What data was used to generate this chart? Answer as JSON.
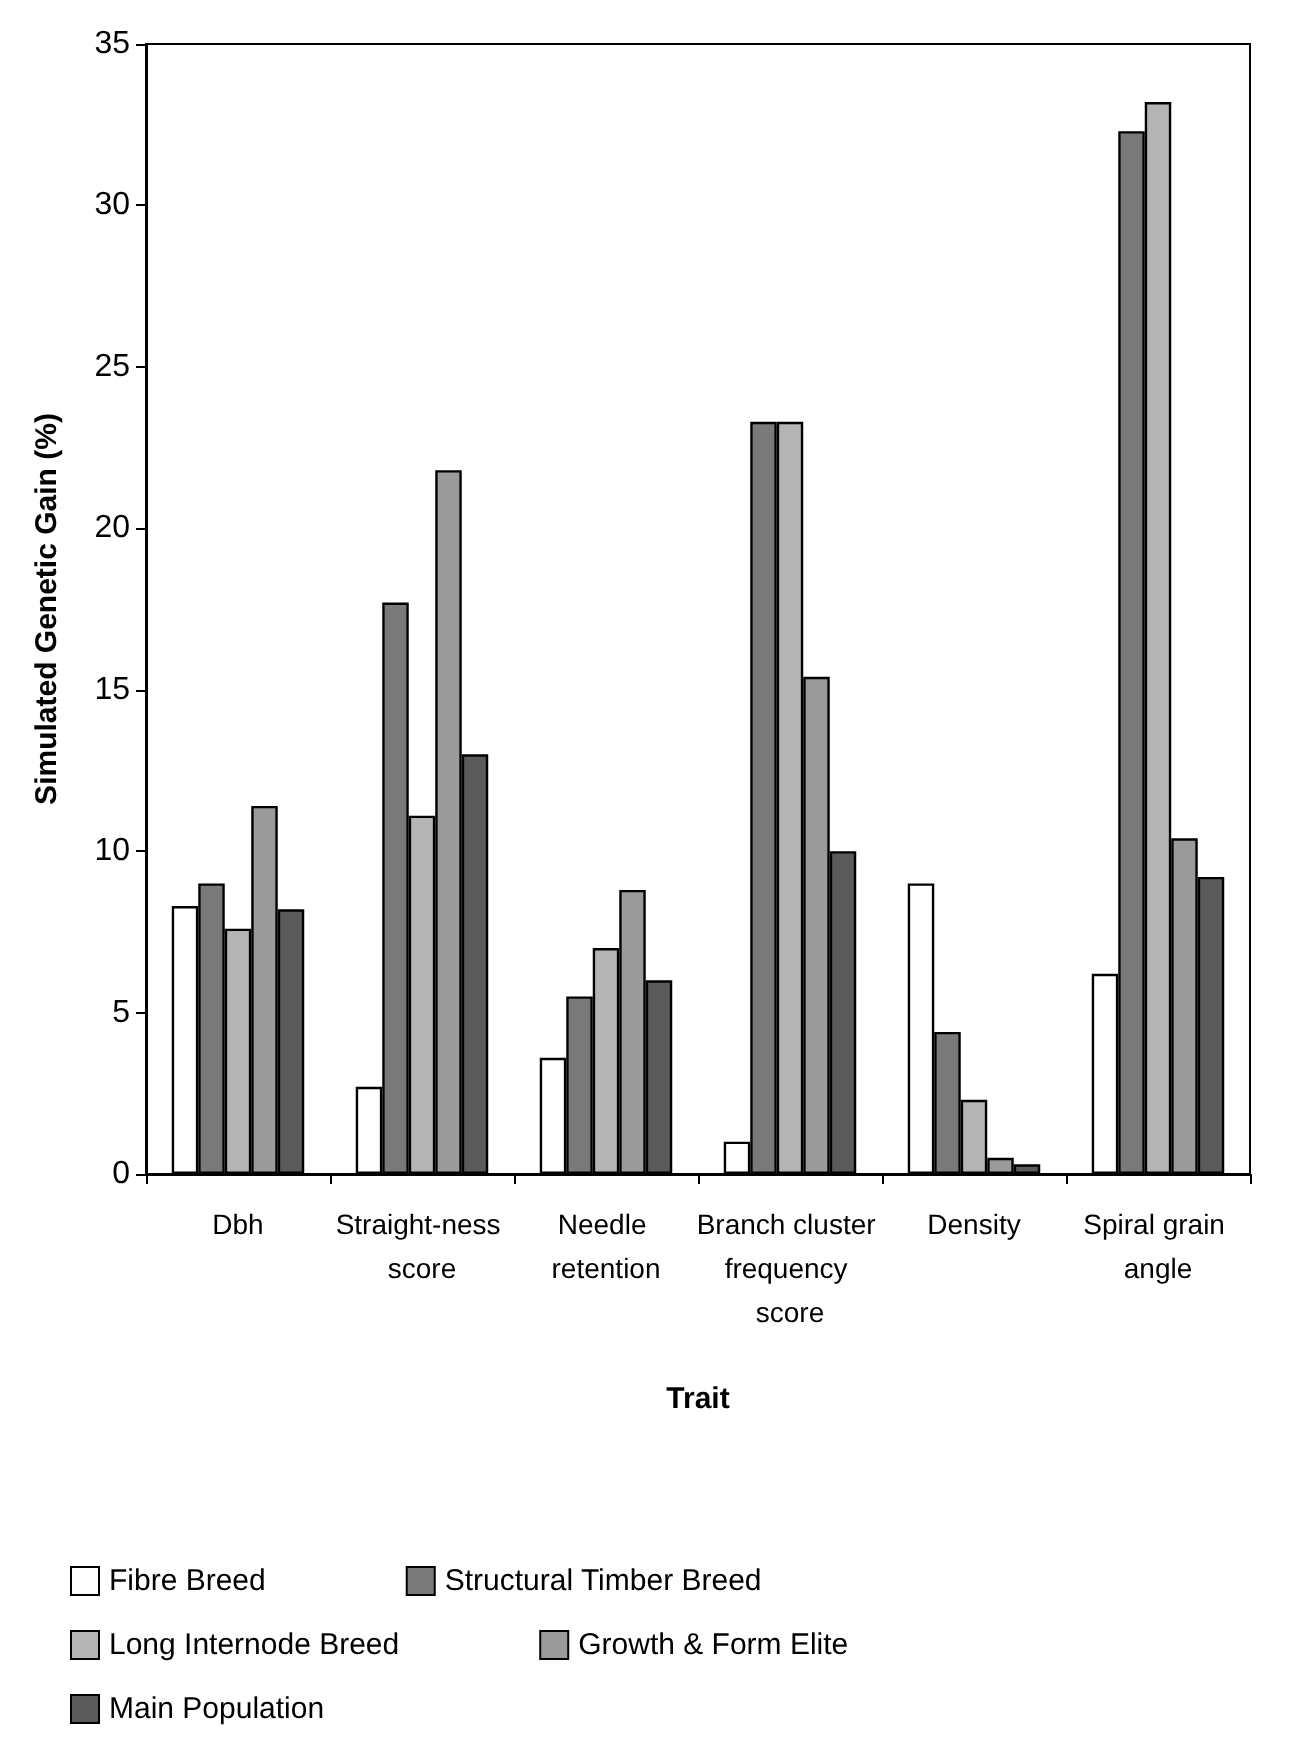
{
  "chart_data": {
    "type": "bar",
    "xlabel": "Trait",
    "ylabel": "Simulated Genetic Gain (%)",
    "categories": [
      "Dbh",
      "Straight-ness score",
      "Needle retention",
      "Branch cluster frequency score",
      "Density",
      "Spiral grain angle"
    ],
    "series": [
      {
        "name": "Fibre Breed",
        "color": "#ffffff",
        "values": [
          8.3,
          2.7,
          3.6,
          1.0,
          9.0,
          6.2
        ]
      },
      {
        "name": "Structural Timber Breed",
        "color": "#7a7a7a",
        "values": [
          9.0,
          17.7,
          5.5,
          23.3,
          4.4,
          32.3
        ]
      },
      {
        "name": "Long Internode Breed",
        "color": "#b4b4b4",
        "values": [
          7.6,
          11.1,
          7.0,
          23.3,
          2.3,
          33.2
        ]
      },
      {
        "name": "Growth & Form Elite",
        "color": "#9a9a9a",
        "values": [
          11.4,
          21.8,
          8.8,
          15.4,
          0.5,
          10.4
        ]
      },
      {
        "name": "Main Population",
        "color": "#5a5a5a",
        "values": [
          8.2,
          13.0,
          6.0,
          10.0,
          0.3,
          9.2
        ]
      }
    ],
    "ylim": [
      0,
      35
    ],
    "yticks": [
      0,
      5,
      10,
      15,
      20,
      25,
      30,
      35
    ],
    "grid": false,
    "legend": "bottom"
  }
}
